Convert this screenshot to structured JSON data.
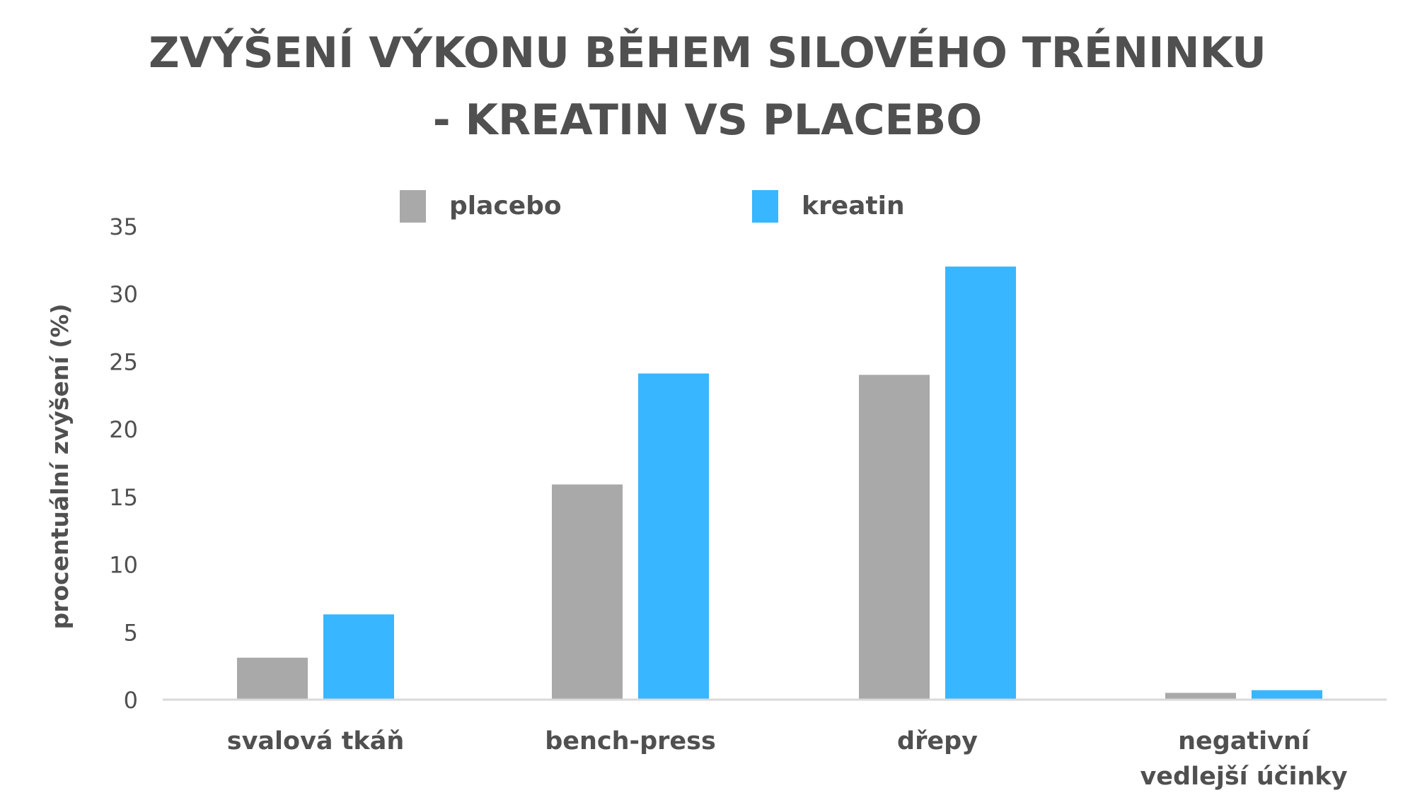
{
  "chart_data": {
    "type": "bar",
    "title": [
      "ZVÝŠENÍ VÝKONU BĚHEM SILOVÉHO TRÉNINKU",
      "- KREATIN VS PLACEBO"
    ],
    "ylabel": "procentuální zvýšení (%)",
    "xlabel": "",
    "ylim": [
      0,
      35
    ],
    "yticks": [
      0,
      5,
      10,
      15,
      20,
      25,
      30,
      35
    ],
    "categories": [
      [
        "svalová tkáň"
      ],
      [
        "bench-press"
      ],
      [
        "dřepy"
      ],
      [
        "negativní",
        "vedlejší účinky"
      ]
    ],
    "series": [
      {
        "name": "placebo",
        "color": "#a9a9a9",
        "values": [
          3.1,
          15.9,
          24.0,
          0.5
        ]
      },
      {
        "name": "kreatin",
        "color": "#38b6ff",
        "values": [
          6.3,
          24.1,
          32.0,
          0.7
        ]
      }
    ],
    "legend_position": "top",
    "grid": false
  }
}
